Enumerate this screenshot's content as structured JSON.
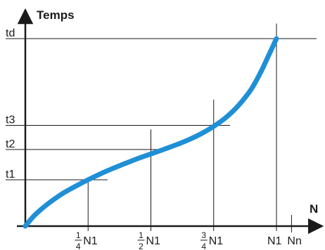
{
  "chart_data": {
    "type": "line",
    "title": "",
    "ylabel": "Temps",
    "xlabel": "N",
    "grid": false,
    "x_ticks": [
      {
        "value": 0.25,
        "numerator": "1",
        "denominator": "4",
        "label": "N1"
      },
      {
        "value": 0.5,
        "numerator": "1",
        "denominator": "2",
        "label": "N1"
      },
      {
        "value": 0.75,
        "numerator": "3",
        "denominator": "4",
        "label": "N1"
      },
      {
        "value": 1.0,
        "label": "N1"
      },
      {
        "value": 1.06,
        "label": "Nn"
      }
    ],
    "y_ticks": [
      {
        "value": 0.23,
        "label": "t1"
      },
      {
        "value": 0.38,
        "label": "t2"
      },
      {
        "value": 0.5,
        "label": "t3"
      },
      {
        "value": 0.93,
        "label": "td"
      }
    ],
    "series": [
      {
        "color": "#1f8fd6",
        "points": [
          [
            0,
            0
          ],
          [
            0.03,
            0.045
          ],
          [
            0.06,
            0.08
          ],
          [
            0.1,
            0.12
          ],
          [
            0.15,
            0.163
          ],
          [
            0.2,
            0.198
          ],
          [
            0.25,
            0.23
          ],
          [
            0.3,
            0.26
          ],
          [
            0.35,
            0.287
          ],
          [
            0.4,
            0.312
          ],
          [
            0.45,
            0.336
          ],
          [
            0.5,
            0.358
          ],
          [
            0.55,
            0.38
          ],
          [
            0.6,
            0.403
          ],
          [
            0.65,
            0.428
          ],
          [
            0.7,
            0.458
          ],
          [
            0.75,
            0.495
          ],
          [
            0.8,
            0.54
          ],
          [
            0.85,
            0.6
          ],
          [
            0.9,
            0.68
          ],
          [
            0.94,
            0.77
          ],
          [
            0.97,
            0.85
          ],
          [
            1.0,
            0.93
          ]
        ]
      }
    ],
    "xlim": [
      0,
      1.2
    ],
    "ylim": [
      0,
      1.05
    ]
  }
}
